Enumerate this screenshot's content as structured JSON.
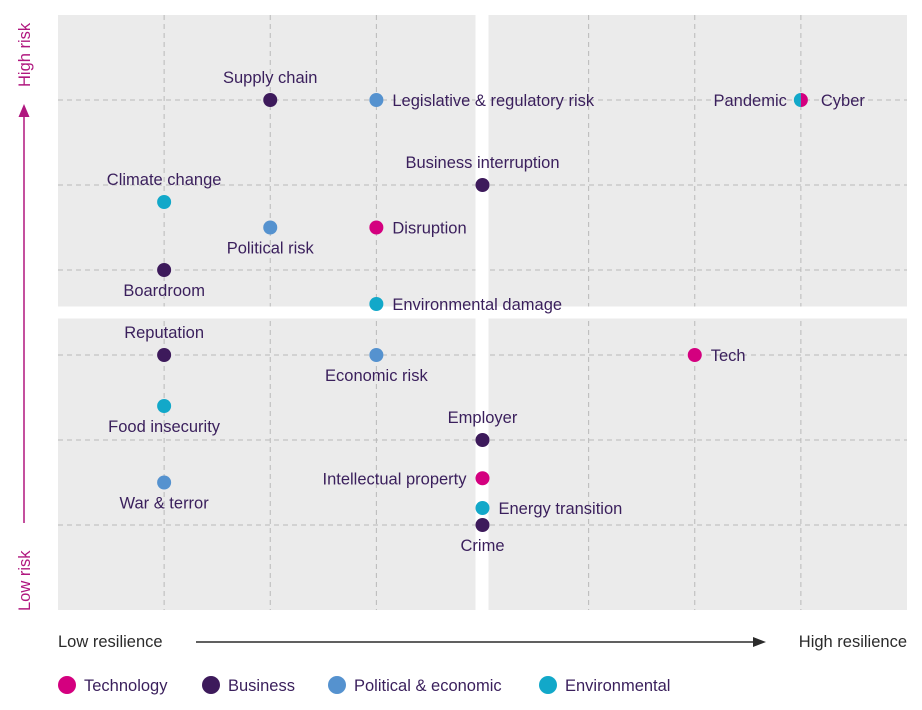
{
  "chart_data": {
    "type": "scatter",
    "title": "",
    "xlabel_low": "Low resilience",
    "xlabel_high": "High resilience",
    "ylabel_low": "Low risk",
    "ylabel_high": "High risk",
    "xlim": [
      0,
      8
    ],
    "ylim": [
      0,
      7
    ],
    "x_grid": [
      1,
      2,
      3,
      4,
      5,
      6,
      7
    ],
    "y_grid": [
      1,
      2,
      3,
      4,
      5,
      6
    ],
    "quadrant_split": {
      "x": 4,
      "y": 3.5
    },
    "grid": true,
    "legend_position": "bottom-left",
    "categories": [
      {
        "key": "technology",
        "name": "Technology",
        "color": "#d4007f"
      },
      {
        "key": "business",
        "name": "Business",
        "color": "#3d1a5b"
      },
      {
        "key": "political",
        "name": "Political & economic",
        "color": "#5592cf"
      },
      {
        "key": "environmental",
        "name": "Environmental",
        "color": "#12a8c9"
      }
    ],
    "points": [
      {
        "label": "Supply chain",
        "x": 2,
        "y": 6,
        "category": "business",
        "label_pos": "above"
      },
      {
        "label": "Legislative & regulatory risk",
        "x": 3,
        "y": 6,
        "category": "political",
        "label_pos": "right"
      },
      {
        "label": "Pandemic",
        "x": 7,
        "y": 6,
        "category": "environmental",
        "label_pos": "left",
        "half": "left"
      },
      {
        "label": "Cyber",
        "x": 7,
        "y": 6,
        "category": "technology",
        "label_pos": "right",
        "half": "right"
      },
      {
        "label": "Business interruption",
        "x": 4,
        "y": 5,
        "category": "business",
        "label_pos": "above"
      },
      {
        "label": "Climate change",
        "x": 1,
        "y": 4.8,
        "category": "environmental",
        "label_pos": "above"
      },
      {
        "label": "Political risk",
        "x": 2,
        "y": 4.5,
        "category": "political",
        "label_pos": "below"
      },
      {
        "label": "Disruption",
        "x": 3,
        "y": 4.5,
        "category": "technology",
        "label_pos": "right"
      },
      {
        "label": "Boardroom",
        "x": 1,
        "y": 4,
        "category": "business",
        "label_pos": "below"
      },
      {
        "label": "Environmental damage",
        "x": 3,
        "y": 3.6,
        "category": "environmental",
        "label_pos": "right"
      },
      {
        "label": "Reputation",
        "x": 1,
        "y": 3,
        "category": "business",
        "label_pos": "above"
      },
      {
        "label": "Economic risk",
        "x": 3,
        "y": 3,
        "category": "political",
        "label_pos": "below"
      },
      {
        "label": "Tech",
        "x": 6,
        "y": 3,
        "category": "technology",
        "label_pos": "right"
      },
      {
        "label": "Food insecurity",
        "x": 1,
        "y": 2.4,
        "category": "environmental",
        "label_pos": "below"
      },
      {
        "label": "Employer",
        "x": 4,
        "y": 2,
        "category": "business",
        "label_pos": "above"
      },
      {
        "label": "Intellectual property",
        "x": 4,
        "y": 1.55,
        "category": "technology",
        "label_pos": "left"
      },
      {
        "label": "War & terror",
        "x": 1,
        "y": 1.5,
        "category": "political",
        "label_pos": "below"
      },
      {
        "label": "Energy transition",
        "x": 4,
        "y": 1.2,
        "category": "environmental",
        "label_pos": "right"
      },
      {
        "label": "Crime",
        "x": 4,
        "y": 1,
        "category": "business",
        "label_pos": "below"
      }
    ]
  },
  "colors": {
    "plot_bg": "#ebebeb",
    "grid": "#b9b9b9",
    "risk_axis": "#b0177f",
    "resilience_axis": "#2b2b2b",
    "label_text": "#3a1f5c"
  }
}
